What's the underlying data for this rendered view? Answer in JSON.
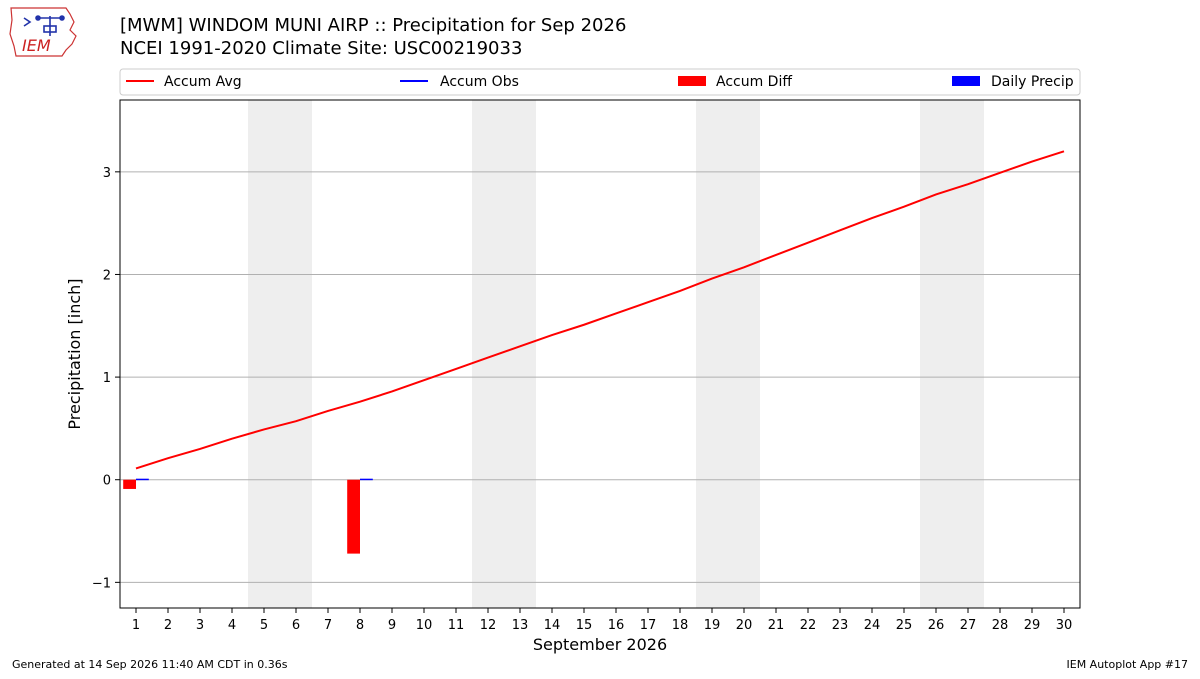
{
  "logo": {
    "text": "IEM"
  },
  "header": {
    "title": "[MWM] WINDOM MUNI AIRP :: Precipitation for Sep 2026",
    "subtitle": "NCEI 1991-2020 Climate Site: USC00219033"
  },
  "footer": {
    "generated": "Generated at 14 Sep 2026 11:40 AM CDT in 0.36s",
    "app": "IEM Autoplot App #17"
  },
  "chart_data": {
    "type": "line",
    "xlabel": "September 2026",
    "ylabel": "Precipitation [inch]",
    "xlim": [
      0.5,
      30.5
    ],
    "ylim": [
      -1.25,
      3.7
    ],
    "yticks": [
      {
        "value": -1,
        "label": "−1"
      },
      {
        "value": 0,
        "label": "0"
      },
      {
        "value": 1,
        "label": "1"
      },
      {
        "value": 2,
        "label": "2"
      },
      {
        "value": 3,
        "label": "3"
      }
    ],
    "xtick_labels": [
      "1",
      "2",
      "3",
      "4",
      "5",
      "6",
      "7",
      "8",
      "9",
      "10",
      "11",
      "12",
      "13",
      "14",
      "15",
      "16",
      "17",
      "18",
      "19",
      "20",
      "21",
      "22",
      "23",
      "24",
      "25",
      "26",
      "27",
      "28",
      "29",
      "30"
    ],
    "grid": "horizontal",
    "legend": {
      "placement": "top",
      "entries": [
        {
          "label": "Accum Avg",
          "kind": "line",
          "color": "#ff0000"
        },
        {
          "label": "Accum Obs",
          "kind": "line",
          "color": "#0000ff"
        },
        {
          "label": "Accum Diff",
          "kind": "patch",
          "color": "#ff0000"
        },
        {
          "label": "Daily Precip",
          "kind": "patch",
          "color": "#0000ff"
        }
      ]
    },
    "weekend_days": [
      5,
      6,
      12,
      13,
      19,
      20,
      26,
      27
    ],
    "weekend_color": "#eeeeee",
    "series": [
      {
        "name": "Accum Avg",
        "kind": "line",
        "color": "#ff0000",
        "x": [
          1,
          2,
          3,
          4,
          5,
          6,
          7,
          8,
          9,
          10,
          11,
          12,
          13,
          14,
          15,
          16,
          17,
          18,
          19,
          20,
          21,
          22,
          23,
          24,
          25,
          26,
          27,
          28,
          29,
          30
        ],
        "values": [
          0.11,
          0.21,
          0.3,
          0.4,
          0.49,
          0.57,
          0.67,
          0.76,
          0.86,
          0.97,
          1.08,
          1.19,
          1.3,
          1.41,
          1.51,
          1.62,
          1.73,
          1.84,
          1.96,
          2.07,
          2.19,
          2.31,
          2.43,
          2.55,
          2.66,
          2.78,
          2.88,
          2.99,
          3.1,
          3.2
        ]
      },
      {
        "name": "Accum Diff",
        "kind": "bar",
        "color": "#ff0000",
        "x": [
          1,
          8
        ],
        "values": [
          -0.09,
          -0.72
        ]
      },
      {
        "name": "Daily Precip",
        "kind": "bar",
        "color": "#0000ff",
        "x": [
          1,
          8
        ],
        "values": [
          0.01,
          0.01
        ]
      }
    ]
  }
}
